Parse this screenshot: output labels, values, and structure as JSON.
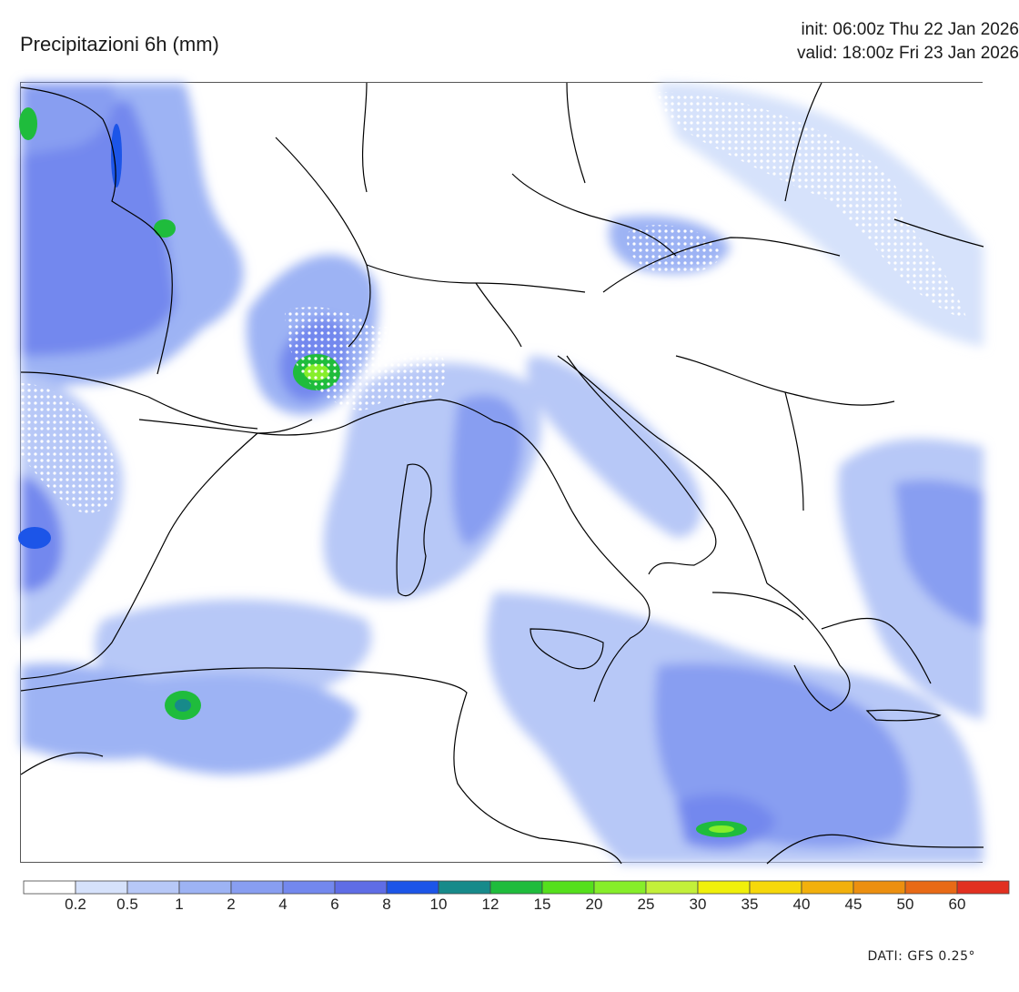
{
  "header": {
    "title": "Precipitazioni 6h (mm)",
    "init": "init: 06:00z Thu 22 Jan 2026",
    "valid": "valid: 18:00z Fri 23 Jan 2026"
  },
  "footer": {
    "source": "DATI: GFS 0.25°"
  },
  "colorbar": {
    "unit": "mm",
    "labels": [
      "0.2",
      "0.5",
      "1",
      "2",
      "4",
      "6",
      "8",
      "10",
      "12",
      "15",
      "20",
      "25",
      "30",
      "35",
      "40",
      "45",
      "50",
      "60"
    ],
    "colors": [
      "#ffffff",
      "#d6e2fb",
      "#b7c8f7",
      "#9db3f4",
      "#889ef1",
      "#7388ee",
      "#5f6de6",
      "#1c55e8",
      "#178a8a",
      "#1fbc3c",
      "#55e01c",
      "#86ee2a",
      "#c3f03a",
      "#f0f00a",
      "#f6d80a",
      "#f2b00c",
      "#ec8f0f",
      "#e86a16",
      "#e23020"
    ]
  },
  "map": {
    "region": "Central Mediterranean / Italy",
    "precip_color_scale": "mm / 6h"
  }
}
